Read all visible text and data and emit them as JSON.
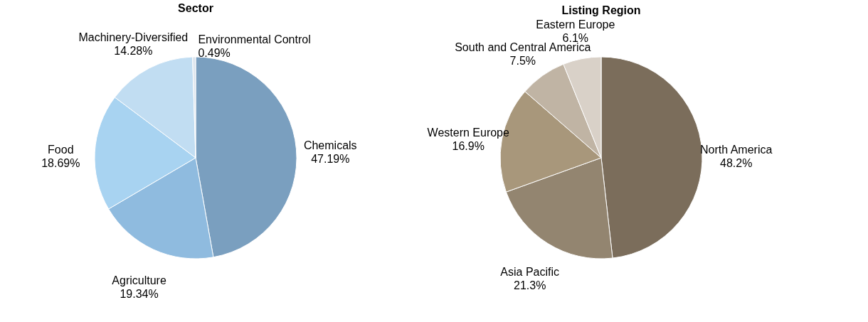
{
  "chart_data": [
    {
      "type": "pie",
      "title": "Sector",
      "categories": [
        "Chemicals",
        "Agriculture",
        "Food",
        "Machinery-Diversified",
        "Environmental Control"
      ],
      "values": [
        47.19,
        19.34,
        18.69,
        14.28,
        0.49
      ],
      "value_labels": [
        "47.19%",
        "19.34%",
        "18.69%",
        "14.28%",
        "0.49%"
      ],
      "colors": [
        "#7a9fbf",
        "#8fbbdf",
        "#a8d3f1",
        "#c1ddf2",
        "#dde5ee"
      ]
    },
    {
      "type": "pie",
      "title": "Listing Region",
      "categories": [
        "North America",
        "Asia Pacific",
        "Western Europe",
        "South and Central America",
        "Eastern Europe"
      ],
      "values": [
        48.2,
        21.3,
        16.9,
        7.5,
        6.1
      ],
      "value_labels": [
        "48.2%",
        "21.3%",
        "16.9%",
        "7.5%",
        "6.1%"
      ],
      "colors": [
        "#7b6d5b",
        "#938570",
        "#a8977b",
        "#c0b4a4",
        "#d9d1c8"
      ]
    }
  ]
}
